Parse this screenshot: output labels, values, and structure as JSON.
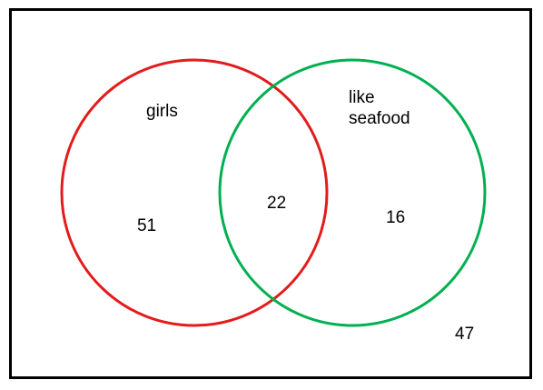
{
  "sets": {
    "a": {
      "label": "girls",
      "color": "#e31b1b"
    },
    "b": {
      "label_line1": "like",
      "label_line2": "seafood",
      "color": "#00b050"
    }
  },
  "regions": {
    "a_only": "51",
    "both": "22",
    "b_only": "16",
    "neither": "47"
  },
  "frame_color": "#000000"
}
